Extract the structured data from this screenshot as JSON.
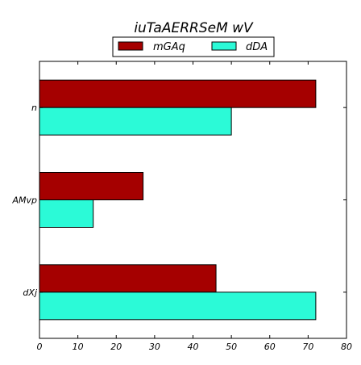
{
  "chart_data": {
    "type": "bar",
    "orientation": "horizontal",
    "title": "iuTaAERRSeM wV",
    "xlabel": "",
    "ylabel": "",
    "categories": [
      "n",
      "AMvp",
      "dXj"
    ],
    "series": [
      {
        "name": "mGAq",
        "values": [
          72,
          27,
          46
        ],
        "color": "#a50000"
      },
      {
        "name": "dDA",
        "values": [
          50,
          14,
          72
        ],
        "color": "#2bfad7"
      }
    ],
    "xlim": [
      0,
      80
    ],
    "xticks": [
      0,
      10,
      20,
      30,
      40,
      50,
      60,
      70,
      80
    ],
    "grid": false,
    "legend_position": "top-center"
  }
}
